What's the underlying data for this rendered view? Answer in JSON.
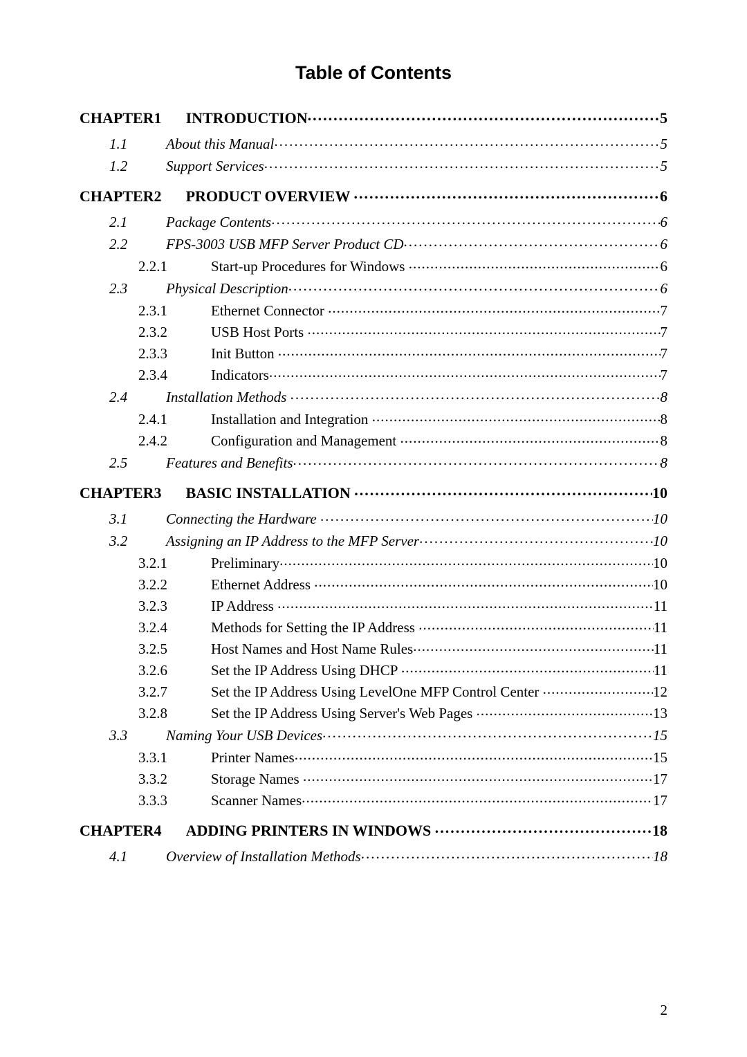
{
  "title": "Table of Contents",
  "page_number": "2",
  "toc": [
    {
      "level": "chapter",
      "num": "CHAPTER1",
      "text": "INTRODUCTION",
      "page": "5"
    },
    {
      "level": "section",
      "num": "1.1",
      "text": "About this Manual",
      "page": "5"
    },
    {
      "level": "section",
      "num": "1.2",
      "text": "Support Services",
      "page": "5"
    },
    {
      "level": "chapter",
      "num": "CHAPTER2",
      "text": "PRODUCT OVERVIEW ",
      "page": "6"
    },
    {
      "level": "section",
      "num": "2.1",
      "text": "Package Contents",
      "page": "6"
    },
    {
      "level": "section",
      "num": "2.2",
      "text": "FPS-3003 USB MFP Server Product CD",
      "page": "6"
    },
    {
      "level": "sub",
      "num": "2.2.1",
      "text": "Start-up Procedures for Windows ",
      "page": "6"
    },
    {
      "level": "section",
      "num": "2.3",
      "text": "Physical Description",
      "page": "6"
    },
    {
      "level": "sub",
      "num": "2.3.1",
      "text": "Ethernet Connector ",
      "page": "7"
    },
    {
      "level": "sub",
      "num": "2.3.2",
      "text": "USB Host Ports ",
      "page": "7"
    },
    {
      "level": "sub",
      "num": "2.3.3",
      "text": "Init Button ",
      "page": "7"
    },
    {
      "level": "sub",
      "num": "2.3.4",
      "text": "Indicators",
      "page": "7"
    },
    {
      "level": "section",
      "num": "2.4",
      "text": "Installation Methods ",
      "page": "8"
    },
    {
      "level": "sub",
      "num": "2.4.1",
      "text": "Installation and Integration ",
      "page": "8"
    },
    {
      "level": "sub",
      "num": "2.4.2",
      "text": "Configuration and Management ",
      "page": "8"
    },
    {
      "level": "section",
      "num": "2.5",
      "text": "Features and Benefits",
      "page": "8"
    },
    {
      "level": "chapter",
      "num": "CHAPTER3",
      "text": "BASIC INSTALLATION ",
      "page": "10"
    },
    {
      "level": "section",
      "num": "3.1",
      "text": "Connecting the Hardware ",
      "page": "10"
    },
    {
      "level": "section",
      "num": "3.2",
      "text": "Assigning an IP Address to the MFP Server",
      "page": "10"
    },
    {
      "level": "sub",
      "num": "3.2.1",
      "text": "Preliminary",
      "page": "10"
    },
    {
      "level": "sub",
      "num": "3.2.2",
      "text": "Ethernet Address ",
      "page": "10"
    },
    {
      "level": "sub",
      "num": "3.2.3",
      "text": "IP Address ",
      "page": "11"
    },
    {
      "level": "sub",
      "num": "3.2.4",
      "text": "Methods for Setting the IP Address ",
      "page": "11"
    },
    {
      "level": "sub",
      "num": "3.2.5",
      "text": "Host Names and Host Name Rules",
      "page": "11"
    },
    {
      "level": "sub",
      "num": "3.2.6",
      "text": "Set the IP Address Using DHCP ",
      "page": "11"
    },
    {
      "level": "sub",
      "num": "3.2.7",
      "text": "Set the IP Address Using LevelOne MFP Control Center ",
      "page": "12"
    },
    {
      "level": "sub",
      "num": "3.2.8",
      "text": "Set the IP Address Using Server's Web Pages ",
      "page": "13"
    },
    {
      "level": "section",
      "num": "3.3",
      "text": "Naming Your USB Devices",
      "page": "15"
    },
    {
      "level": "sub",
      "num": "3.3.1",
      "text": "Printer Names",
      "page": "15"
    },
    {
      "level": "sub",
      "num": "3.3.2",
      "text": "Storage Names ",
      "page": "17"
    },
    {
      "level": "sub",
      "num": "3.3.3",
      "text": "Scanner Names",
      "page": "17"
    },
    {
      "level": "chapter",
      "num": "CHAPTER4",
      "text": "ADDING PRINTERS IN WINDOWS ",
      "page": "18"
    },
    {
      "level": "section",
      "num": "4.1",
      "text": "Overview of Installation Methods",
      "page": "18"
    }
  ]
}
